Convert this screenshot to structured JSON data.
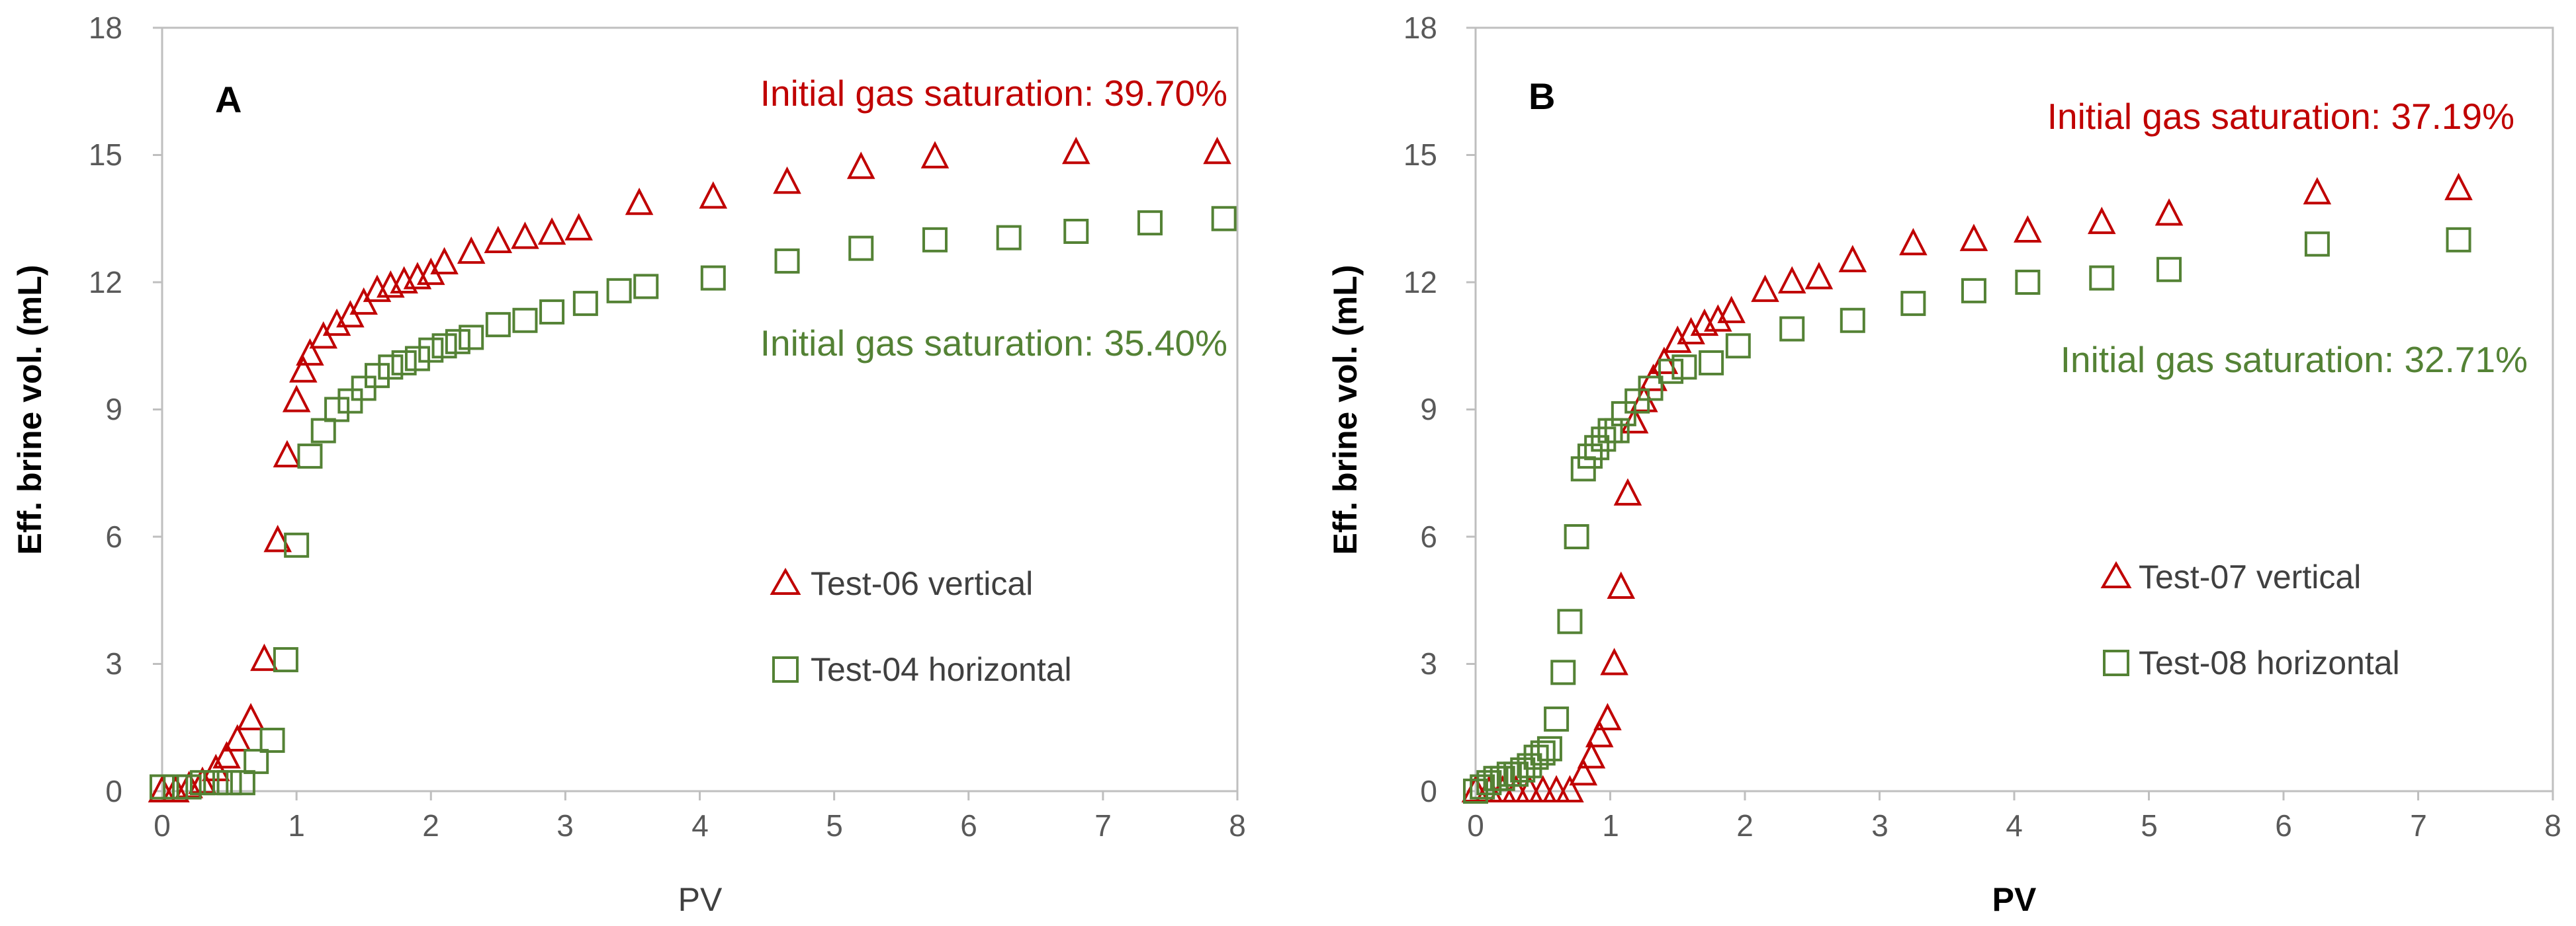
{
  "colors": {
    "red": "#c00000",
    "green": "#548235",
    "axis": "#bfbfbf",
    "text": "#595959"
  },
  "chart_data": [
    {
      "type": "scatter",
      "panel_label": "A",
      "xlabel": "PV",
      "ylabel": "Eff. brine vol. (mL)",
      "xlim": [
        0,
        8
      ],
      "ylim": [
        0,
        18
      ],
      "xticks": [
        0,
        1,
        2,
        3,
        4,
        5,
        6,
        7,
        8
      ],
      "yticks": [
        0,
        3,
        6,
        9,
        12,
        15,
        18
      ],
      "annotations": [
        {
          "text": "Initial gas saturation: 39.70%",
          "color": "#c00000"
        },
        {
          "text": "Initial gas saturation: 35.40%",
          "color": "#548235"
        }
      ],
      "series": [
        {
          "name": "Test-06 vertical",
          "marker": "triangle",
          "color": "#c00000",
          "points": [
            [
              0,
              0
            ],
            [
              0.1,
              0
            ],
            [
              0.2,
              0.1
            ],
            [
              0.3,
              0.2
            ],
            [
              0.4,
              0.5
            ],
            [
              0.48,
              0.8
            ],
            [
              0.56,
              1.2
            ],
            [
              0.66,
              1.7
            ],
            [
              0.76,
              3.1
            ],
            [
              0.86,
              5.9
            ],
            [
              0.93,
              7.9
            ],
            [
              1.0,
              9.2
            ],
            [
              1.05,
              9.9
            ],
            [
              1.1,
              10.3
            ],
            [
              1.2,
              10.7
            ],
            [
              1.3,
              11.0
            ],
            [
              1.4,
              11.2
            ],
            [
              1.5,
              11.5
            ],
            [
              1.6,
              11.8
            ],
            [
              1.7,
              11.9
            ],
            [
              1.8,
              12.0
            ],
            [
              1.9,
              12.1
            ],
            [
              2.0,
              12.2
            ],
            [
              2.1,
              12.45
            ],
            [
              2.3,
              12.7
            ],
            [
              2.5,
              12.95
            ],
            [
              2.7,
              13.05
            ],
            [
              2.9,
              13.15
            ],
            [
              3.1,
              13.25
            ],
            [
              3.55,
              13.85
            ],
            [
              4.1,
              14.0
            ],
            [
              4.65,
              14.35
            ],
            [
              5.2,
              14.7
            ],
            [
              5.75,
              14.95
            ],
            [
              6.8,
              15.05
            ],
            [
              7.85,
              15.05
            ]
          ]
        },
        {
          "name": "Test-04 horizontal",
          "marker": "square",
          "color": "#548235",
          "points": [
            [
              0,
              0.1
            ],
            [
              0.1,
              0.1
            ],
            [
              0.2,
              0.1
            ],
            [
              0.3,
              0.2
            ],
            [
              0.4,
              0.2
            ],
            [
              0.5,
              0.2
            ],
            [
              0.6,
              0.2
            ],
            [
              0.7,
              0.7
            ],
            [
              0.82,
              1.2
            ],
            [
              0.92,
              3.1
            ],
            [
              1.0,
              5.8
            ],
            [
              1.1,
              7.9
            ],
            [
              1.2,
              8.5
            ],
            [
              1.3,
              9.0
            ],
            [
              1.4,
              9.2
            ],
            [
              1.5,
              9.5
            ],
            [
              1.6,
              9.8
            ],
            [
              1.7,
              10.0
            ],
            [
              1.8,
              10.1
            ],
            [
              1.9,
              10.2
            ],
            [
              2.0,
              10.4
            ],
            [
              2.1,
              10.5
            ],
            [
              2.2,
              10.6
            ],
            [
              2.3,
              10.7
            ],
            [
              2.5,
              11.0
            ],
            [
              2.7,
              11.1
            ],
            [
              2.9,
              11.3
            ],
            [
              3.15,
              11.5
            ],
            [
              3.4,
              11.8
            ],
            [
              3.6,
              11.9
            ],
            [
              4.1,
              12.1
            ],
            [
              4.65,
              12.5
            ],
            [
              5.2,
              12.8
            ],
            [
              5.75,
              13.0
            ],
            [
              6.3,
              13.05
            ],
            [
              6.8,
              13.2
            ],
            [
              7.35,
              13.4
            ],
            [
              7.9,
              13.5
            ]
          ]
        }
      ]
    },
    {
      "type": "scatter",
      "panel_label": "B",
      "xlabel": "PV",
      "ylabel": "Eff. brine vol. (mL)",
      "xlim": [
        0,
        8
      ],
      "ylim": [
        0,
        18
      ],
      "xticks": [
        0,
        1,
        2,
        3,
        4,
        5,
        6,
        7,
        8
      ],
      "yticks": [
        0,
        3,
        6,
        9,
        12,
        15,
        18
      ],
      "annotations": [
        {
          "text": "Initial gas saturation: 37.19%",
          "color": "#c00000"
        },
        {
          "text": "Initial gas saturation: 32.71%",
          "color": "#548235"
        }
      ],
      "series": [
        {
          "name": "Test-07 vertical",
          "marker": "triangle",
          "color": "#c00000",
          "points": [
            [
              0,
              0
            ],
            [
              0.1,
              0
            ],
            [
              0.2,
              0
            ],
            [
              0.3,
              0
            ],
            [
              0.4,
              0
            ],
            [
              0.5,
              0
            ],
            [
              0.6,
              0
            ],
            [
              0.7,
              0
            ],
            [
              0.8,
              0.4
            ],
            [
              0.86,
              0.8
            ],
            [
              0.92,
              1.3
            ],
            [
              0.98,
              1.7
            ],
            [
              1.03,
              3.0
            ],
            [
              1.08,
              4.8
            ],
            [
              1.13,
              7.0
            ],
            [
              1.18,
              8.7
            ],
            [
              1.25,
              9.2
            ],
            [
              1.32,
              9.7
            ],
            [
              1.4,
              10.1
            ],
            [
              1.5,
              10.6
            ],
            [
              1.6,
              10.8
            ],
            [
              1.7,
              11.0
            ],
            [
              1.8,
              11.1
            ],
            [
              1.9,
              11.3
            ],
            [
              2.15,
              11.8
            ],
            [
              2.35,
              12.0
            ],
            [
              2.55,
              12.1
            ],
            [
              2.8,
              12.5
            ],
            [
              3.25,
              12.9
            ],
            [
              3.7,
              13.0
            ],
            [
              4.1,
              13.2
            ],
            [
              4.65,
              13.4
            ],
            [
              5.15,
              13.6
            ],
            [
              6.25,
              14.1
            ],
            [
              7.3,
              14.2
            ]
          ]
        },
        {
          "name": "Test-08 horizontal",
          "marker": "square",
          "color": "#548235",
          "points": [
            [
              0,
              0
            ],
            [
              0.05,
              0.1
            ],
            [
              0.1,
              0.2
            ],
            [
              0.15,
              0.3
            ],
            [
              0.2,
              0.3
            ],
            [
              0.25,
              0.4
            ],
            [
              0.3,
              0.4
            ],
            [
              0.35,
              0.5
            ],
            [
              0.4,
              0.6
            ],
            [
              0.45,
              0.8
            ],
            [
              0.5,
              0.9
            ],
            [
              0.55,
              1.0
            ],
            [
              0.6,
              1.7
            ],
            [
              0.65,
              2.8
            ],
            [
              0.7,
              4.0
            ],
            [
              0.75,
              6.0
            ],
            [
              0.8,
              7.6
            ],
            [
              0.85,
              7.9
            ],
            [
              0.9,
              8.1
            ],
            [
              0.95,
              8.3
            ],
            [
              1.0,
              8.5
            ],
            [
              1.05,
              8.5
            ],
            [
              1.1,
              8.9
            ],
            [
              1.2,
              9.2
            ],
            [
              1.3,
              9.5
            ],
            [
              1.45,
              9.9
            ],
            [
              1.55,
              10.0
            ],
            [
              1.75,
              10.1
            ],
            [
              1.95,
              10.5
            ],
            [
              2.35,
              10.9
            ],
            [
              2.8,
              11.1
            ],
            [
              3.25,
              11.5
            ],
            [
              3.7,
              11.8
            ],
            [
              4.1,
              12.0
            ],
            [
              4.65,
              12.1
            ],
            [
              5.15,
              12.3
            ],
            [
              6.25,
              12.9
            ],
            [
              7.3,
              13.0
            ]
          ]
        }
      ]
    }
  ]
}
